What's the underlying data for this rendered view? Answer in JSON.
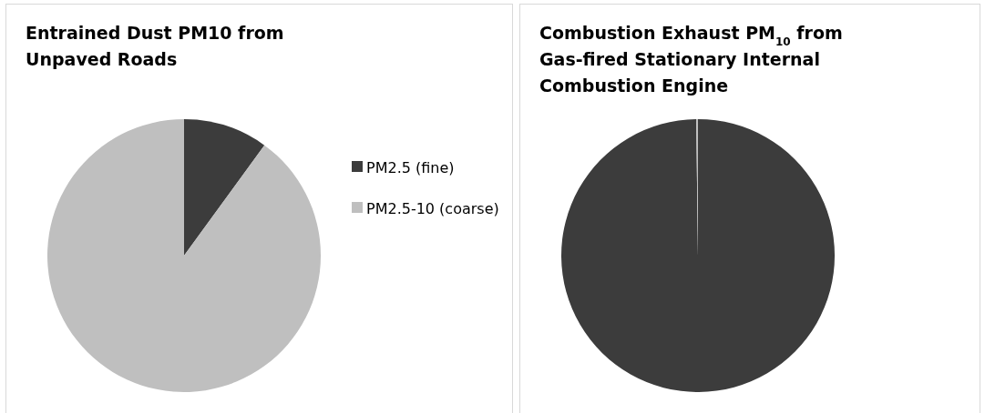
{
  "chart_data": [
    {
      "type": "pie",
      "title": "Entrained Dust PM10 from Unpaved Roads",
      "categories": [
        "PM2.5 (fine)",
        "PM2.5-10 (coarse)"
      ],
      "values": [
        10,
        90
      ],
      "colors": [
        "#3c3c3c",
        "#bfbfbf"
      ],
      "legend": "right"
    },
    {
      "type": "pie",
      "title": "Combustion Exhaust PM$_{10}$ from Gas-fired Stationary Internal Combustion Engine",
      "categories": [
        null,
        null
      ],
      "values": [
        99.8,
        0.2
      ],
      "colors": [
        "#3c3c3c",
        "#bfbfbf"
      ],
      "legend": false
    }
  ]
}
